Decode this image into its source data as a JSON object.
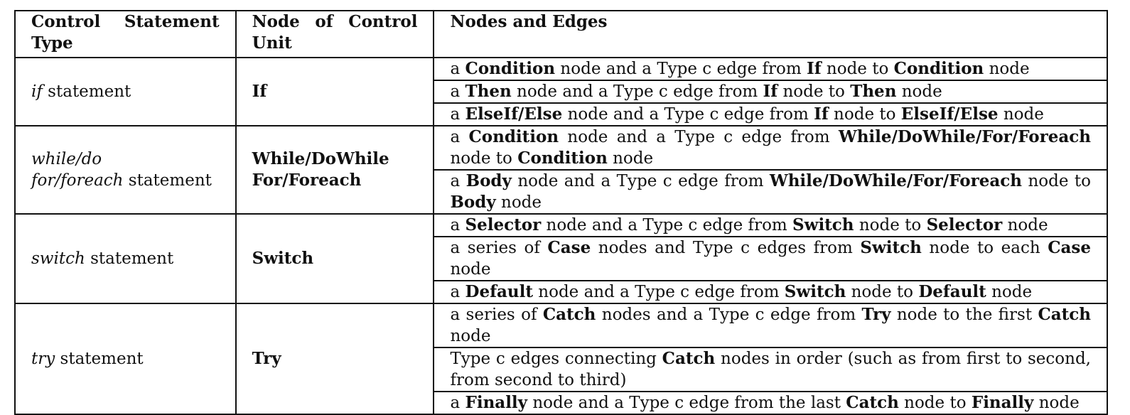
{
  "header": {
    "col1": "Control Statement Type",
    "col2": "Node of Control Unit",
    "col3": "Nodes and Edges"
  },
  "groups": [
    {
      "type_italic": "if",
      "type_rest": " statement",
      "node_lines": [
        "If"
      ],
      "edges": [
        [
          [
            "a ",
            false
          ],
          [
            "Condition",
            true
          ],
          [
            " node and a Type c edge from ",
            false
          ],
          [
            "If",
            true
          ],
          [
            " node to ",
            false
          ],
          [
            "Condition",
            true
          ],
          [
            " node",
            false
          ]
        ],
        [
          [
            "a ",
            false
          ],
          [
            "Then",
            true
          ],
          [
            " node and a Type c edge from ",
            false
          ],
          [
            "If",
            true
          ],
          [
            " node to ",
            false
          ],
          [
            "Then",
            true
          ],
          [
            " node",
            false
          ]
        ],
        [
          [
            "a ",
            false
          ],
          [
            "ElseIf/Else",
            true
          ],
          [
            " node and a Type c edge from ",
            false
          ],
          [
            "If",
            true
          ],
          [
            " node to ",
            false
          ],
          [
            "ElseIf/Else",
            true
          ],
          [
            " node",
            false
          ]
        ]
      ]
    },
    {
      "type_lines": [
        {
          "italic": "while/do",
          "rest": ""
        },
        {
          "italic": "for/foreach",
          "rest": " statement"
        }
      ],
      "node_lines": [
        "While/DoWhile",
        "For/Foreach"
      ],
      "edges": [
        [
          [
            "a ",
            false
          ],
          [
            "Condition",
            true
          ],
          [
            " node and a Type c edge from ",
            false
          ],
          [
            "While/DoWhile/For/Foreach",
            true
          ],
          [
            " node to ",
            false
          ],
          [
            "Condition",
            true
          ],
          [
            " node",
            false
          ]
        ],
        [
          [
            "a ",
            false
          ],
          [
            "Body",
            true
          ],
          [
            " node and a Type c edge from ",
            false
          ],
          [
            "While/DoWhile/For/Foreach",
            true
          ],
          [
            " node to ",
            false
          ],
          [
            "Body",
            true
          ],
          [
            " node",
            false
          ]
        ]
      ]
    },
    {
      "type_italic": "switch",
      "type_rest": " statement",
      "node_lines": [
        "Switch"
      ],
      "edges": [
        [
          [
            "a ",
            false
          ],
          [
            "Selector",
            true
          ],
          [
            " node and a Type c edge from ",
            false
          ],
          [
            "Switch",
            true
          ],
          [
            " node to ",
            false
          ],
          [
            "Selector",
            true
          ],
          [
            " node",
            false
          ]
        ],
        [
          [
            "a series of ",
            false
          ],
          [
            "Case",
            true
          ],
          [
            " nodes and Type c edges from ",
            false
          ],
          [
            "Switch",
            true
          ],
          [
            " node to each ",
            false
          ],
          [
            "Case",
            true
          ],
          [
            " node",
            false
          ]
        ],
        [
          [
            "a ",
            false
          ],
          [
            "Default",
            true
          ],
          [
            " node and a Type c edge from ",
            false
          ],
          [
            "Switch",
            true
          ],
          [
            " node to ",
            false
          ],
          [
            "Default",
            true
          ],
          [
            " node",
            false
          ]
        ]
      ]
    },
    {
      "type_italic": "try",
      "type_rest": " statement",
      "node_lines": [
        "Try"
      ],
      "edges": [
        [
          [
            "a series of ",
            false
          ],
          [
            "Catch",
            true
          ],
          [
            " nodes and a Type c edge from ",
            false
          ],
          [
            "Try",
            true
          ],
          [
            " node to the first ",
            false
          ],
          [
            "Catch",
            true
          ],
          [
            " node",
            false
          ]
        ],
        [
          [
            "Type c edges connecting ",
            false
          ],
          [
            "Catch",
            true
          ],
          [
            " nodes in order (such as from first to second, from second to third)",
            false
          ]
        ],
        [
          [
            "a ",
            false
          ],
          [
            "Finally",
            true
          ],
          [
            " node and a Type c edge from the last ",
            false
          ],
          [
            "Catch",
            true
          ],
          [
            " node to ",
            false
          ],
          [
            "Finally",
            true
          ],
          [
            " node",
            false
          ]
        ]
      ]
    }
  ]
}
